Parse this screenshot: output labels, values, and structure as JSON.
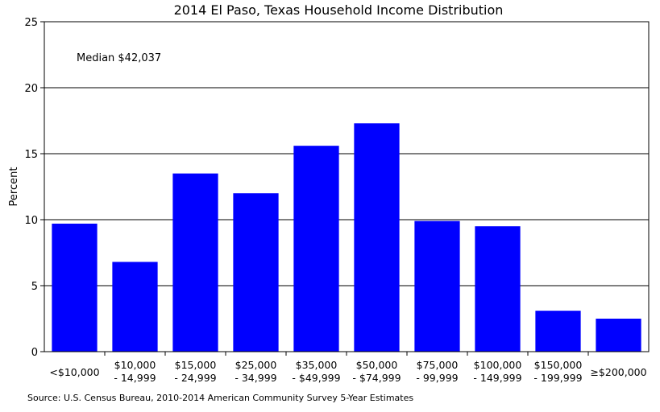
{
  "chart_data": {
    "type": "bar",
    "title": "2014 El Paso, Texas Household Income Distribution",
    "ylabel": "Percent",
    "xlabel": "",
    "ylim": [
      0,
      25
    ],
    "yticks": [
      "0",
      "5",
      "10",
      "15",
      "20",
      "25"
    ],
    "grid": true,
    "bar_color": "#0000ff",
    "categories": [
      [
        "<$10,000"
      ],
      [
        "$10,000",
        "- 14,999"
      ],
      [
        "$15,000",
        "- 24,999"
      ],
      [
        "$25,000",
        "- 34,999"
      ],
      [
        "$35,000",
        "- $49,999"
      ],
      [
        "$50,000",
        "- $74,999"
      ],
      [
        "$75,000",
        "- 99,999"
      ],
      [
        "$100,000",
        "- 149,999"
      ],
      [
        "$150,000",
        "- 199,999"
      ],
      [
        "≥$200,000"
      ]
    ],
    "values": [
      9.7,
      6.8,
      13.5,
      12.0,
      15.6,
      17.3,
      9.9,
      9.5,
      3.1,
      2.5
    ],
    "annotation": "Median $42,037",
    "source": "Source: U.S. Census Bureau, 2010-2014 American Community Survey 5-Year Estimates"
  }
}
